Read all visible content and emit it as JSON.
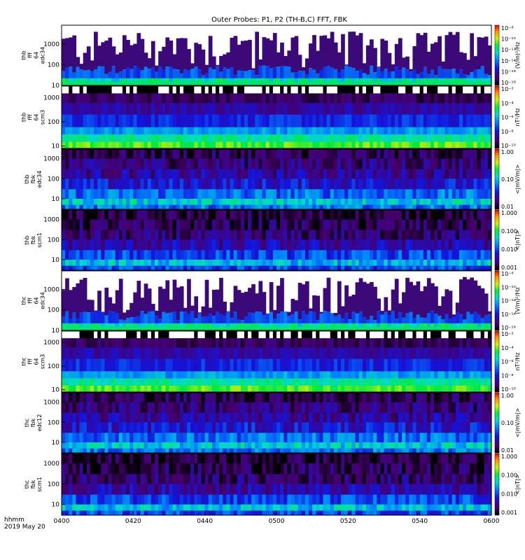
{
  "chart_data": {
    "type": "heatmap",
    "title": "Outer Probes: P1, P2 (TH-B,C) FFT, FBK",
    "x_axis": {
      "ticks": [
        "0400",
        "0420",
        "0440",
        "0500",
        "0520",
        "0540",
        "0600"
      ],
      "label_line1": "hhmm",
      "label_line2": "2019 May 20"
    },
    "panels": [
      {
        "ylabel": [
          "thb",
          "fff",
          "64",
          "edc34"
        ],
        "kind": "ffe",
        "yticks": [
          "10",
          "100",
          "1000"
        ],
        "ylog": [
          10,
          8000
        ],
        "colorbar": {
          "label": "(V/m)²/Hz",
          "ticks": [
            "10⁻⁸",
            "10⁻¹⁰",
            "10⁻¹²",
            "10⁻¹⁴",
            "10⁻¹⁶",
            "10⁻¹⁸"
          ],
          "style": "rainbow"
        }
      },
      {
        "ylabel": [
          "thb",
          "fff",
          "64",
          "scm3"
        ],
        "kind": "ffs",
        "yticks": [
          "10",
          "100",
          "1000"
        ],
        "ylog": [
          8,
          3000
        ],
        "colorbar": {
          "label": "nT²/Hz",
          "ticks": [
            "10⁻²",
            "10⁻⁴",
            "10⁻⁶",
            "10⁻⁸",
            "10⁻¹⁰"
          ],
          "style": "rainbow"
        }
      },
      {
        "ylabel": [
          "thb",
          "fbk",
          "edc34"
        ],
        "kind": "fbe",
        "yticks": [
          "10",
          "100",
          "1000"
        ],
        "ylog": [
          3,
          3000
        ],
        "colorbar": {
          "label": "<|mV/m|>",
          "ticks": [
            "1.00",
            "0.10",
            "0.01"
          ],
          "style": "rainbow"
        }
      },
      {
        "ylabel": [
          "thb",
          "fbk",
          "scm1"
        ],
        "kind": "fbs",
        "yticks": [
          "10",
          "100",
          "1000"
        ],
        "ylog": [
          3,
          3000
        ],
        "colorbar": {
          "label": "<|nT|>",
          "ticks": [
            "1.000",
            "0.100",
            "0.010",
            "0.001"
          ],
          "style": "rainbow"
        }
      },
      {
        "ylabel": [
          "thc",
          "fff",
          "64",
          "edc34"
        ],
        "kind": "ffe",
        "yticks": [
          "10",
          "100",
          "1000"
        ],
        "ylog": [
          10,
          8000
        ],
        "colorbar": {
          "label": "(V/m)²/Hz",
          "ticks": [
            "10⁻⁸",
            "10⁻¹⁰",
            "10⁻¹²",
            "10⁻¹⁴",
            "10⁻¹⁶"
          ],
          "style": "rainbow"
        }
      },
      {
        "ylabel": [
          "thc",
          "fff",
          "64",
          "scm3"
        ],
        "kind": "ffs",
        "yticks": [
          "10",
          "100",
          "1000"
        ],
        "ylog": [
          8,
          3000
        ],
        "colorbar": {
          "label": "nT²/Hz",
          "ticks": [
            "10⁻²",
            "10⁻⁴",
            "10⁻⁶",
            "10⁻⁸",
            "10⁻¹⁰"
          ],
          "style": "rainbow"
        }
      },
      {
        "ylabel": [
          "thc",
          "fbk",
          "edc12"
        ],
        "kind": "fbe",
        "yticks": [
          "10",
          "100",
          "1000"
        ],
        "ylog": [
          3,
          3000
        ],
        "colorbar": {
          "label": "<|mV/m|>",
          "ticks": [
            "1.00",
            "0.10",
            "0.01"
          ],
          "style": "rainbow"
        }
      },
      {
        "ylabel": [
          "thc",
          "fbk",
          "scm1"
        ],
        "kind": "fbs",
        "yticks": [
          "10",
          "100",
          "1000"
        ],
        "ylog": [
          3,
          3000
        ],
        "colorbar": {
          "label": "<|nT|>",
          "ticks": [
            "1.000",
            "0.100",
            "0.010",
            "0.001"
          ],
          "style": "rainbow"
        }
      }
    ]
  }
}
